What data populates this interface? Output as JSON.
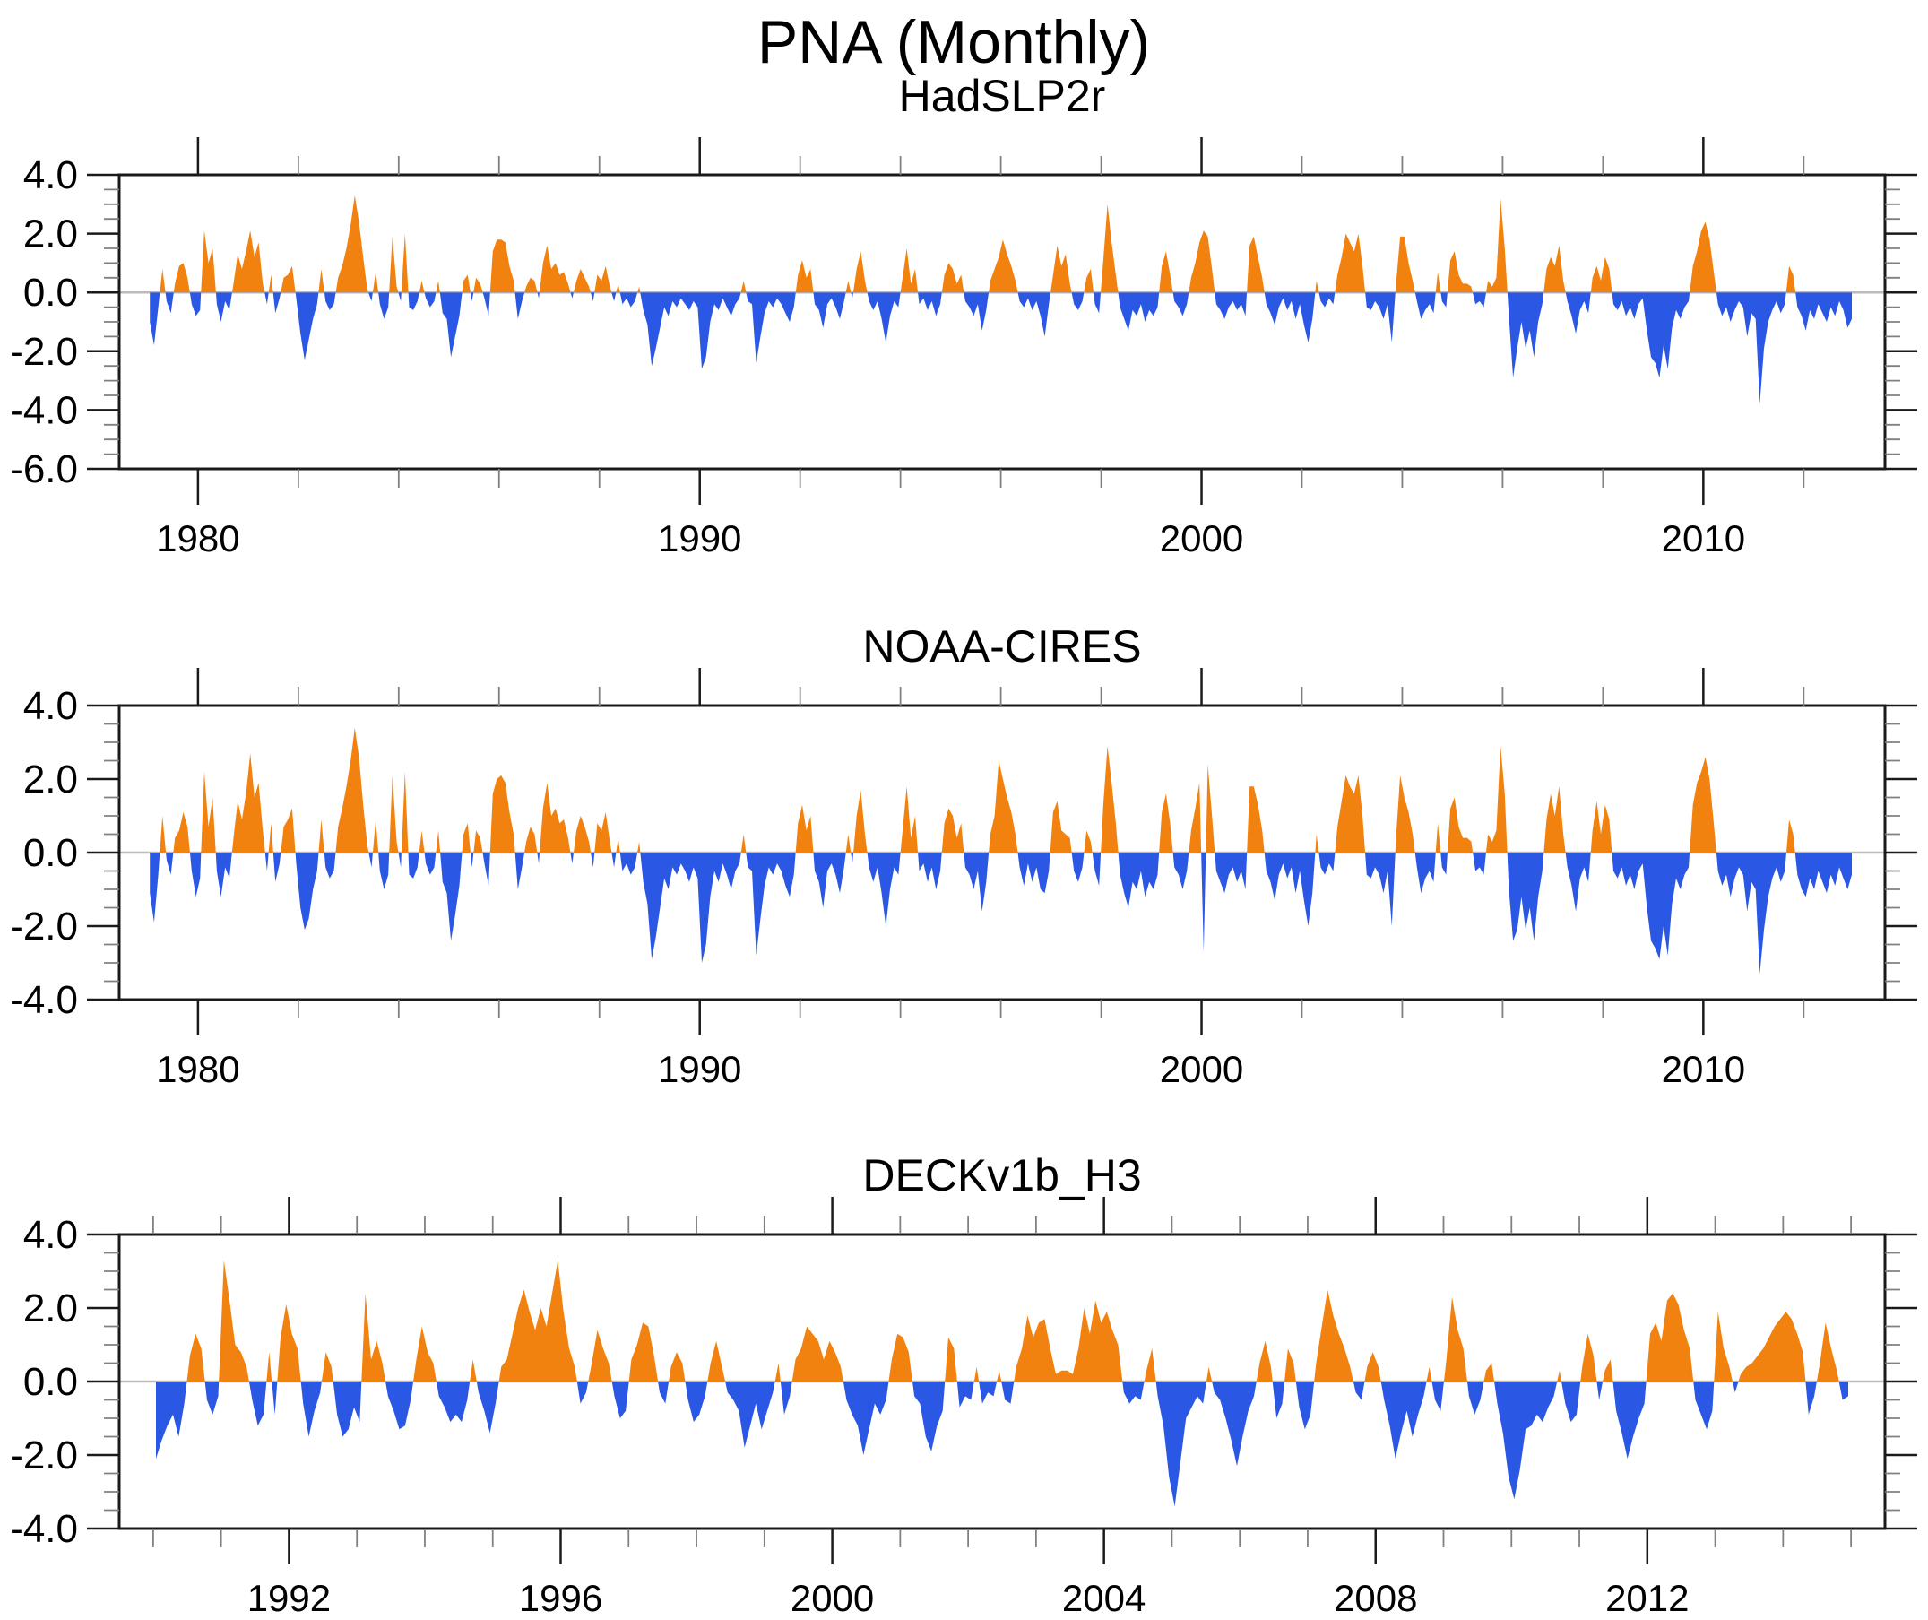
{
  "title": "PNA (Monthly)",
  "colors": {
    "positive_fill": "#F2820F",
    "negative_fill": "#2B57E5",
    "zero_line": "#BBBBBB",
    "axis": "#1A1A1A",
    "minor_tick": "#808080",
    "background": "#FFFFFF"
  },
  "chart_data": [
    {
      "type": "area",
      "title": "HadSLP2r",
      "xlabel": "",
      "ylabel": "",
      "grid": false,
      "legend_position": "none",
      "x_start": 1979.0,
      "x_step": 0.0833333,
      "xlim": [
        1978.43,
        2013.62
      ],
      "ylim": [
        -6.0,
        4.0
      ],
      "x_tick_values": [
        1980,
        1990,
        2000,
        2010
      ],
      "x_tick_labels": [
        "1980",
        "1990",
        "2000",
        "2010"
      ],
      "x_minor_step": 2,
      "y_tick_values": [
        4,
        2,
        0,
        -2,
        -4,
        -6
      ],
      "y_tick_labels": [
        "4.0",
        "2.0",
        "0.0",
        "-2.0",
        "-4.0",
        "-6.0"
      ],
      "y_minor_step": 0.5,
      "values": [
        -1.0,
        -1.8,
        -0.5,
        0.8,
        -0.3,
        -0.7,
        0.3,
        0.9,
        1.0,
        0.5,
        -0.4,
        -0.8,
        -0.6,
        2.1,
        1.0,
        1.5,
        -0.4,
        -1.0,
        -0.3,
        -0.6,
        0.3,
        1.3,
        0.8,
        1.4,
        2.1,
        1.2,
        1.7,
        0.3,
        -0.4,
        0.6,
        -0.7,
        -0.2,
        0.5,
        0.6,
        0.9,
        -0.2,
        -1.4,
        -2.3,
        -1.6,
        -0.9,
        -0.4,
        0.8,
        -0.3,
        -0.6,
        -0.4,
        0.5,
        0.9,
        1.5,
        2.3,
        3.3,
        2.4,
        1.2,
        0.1,
        -0.3,
        0.7,
        -0.4,
        -0.9,
        -0.5,
        1.9,
        0.2,
        -0.3,
        2.0,
        -0.5,
        -0.6,
        -0.3,
        0.4,
        -0.2,
        -0.5,
        -0.3,
        0.4,
        -0.7,
        -0.9,
        -2.2,
        -1.5,
        -0.8,
        0.4,
        0.6,
        -0.3,
        0.5,
        0.3,
        -0.2,
        -0.8,
        1.4,
        1.8,
        1.8,
        1.7,
        0.9,
        0.4,
        -0.9,
        -0.3,
        0.2,
        0.5,
        0.4,
        -0.2,
        1.0,
        1.6,
        0.8,
        1.0,
        0.6,
        0.7,
        0.3,
        -0.2,
        0.4,
        0.8,
        0.5,
        0.2,
        -0.3,
        0.6,
        0.4,
        0.9,
        0.2,
        -0.3,
        0.3,
        -0.4,
        -0.2,
        -0.5,
        -0.3,
        0.2,
        -0.6,
        -1.1,
        -2.5,
        -1.9,
        -1.2,
        -0.5,
        -0.8,
        -0.3,
        -0.5,
        -0.2,
        -0.4,
        -0.6,
        -0.3,
        -0.5,
        -2.6,
        -2.2,
        -1.0,
        -0.4,
        -0.6,
        -0.2,
        -0.5,
        -0.8,
        -0.4,
        -0.2,
        0.4,
        -0.3,
        -0.4,
        -2.4,
        -1.5,
        -0.7,
        -0.3,
        -0.5,
        -0.2,
        -0.4,
        -0.7,
        -1.0,
        -0.5,
        0.6,
        1.1,
        0.5,
        0.8,
        -0.4,
        -0.6,
        -1.2,
        -0.4,
        -0.2,
        -0.5,
        -0.9,
        -0.3,
        0.4,
        -0.2,
        0.8,
        1.4,
        0.4,
        -0.3,
        -0.6,
        -0.3,
        -0.9,
        -1.7,
        -0.8,
        -0.3,
        -0.5,
        0.5,
        1.5,
        0.3,
        0.8,
        -0.4,
        -0.2,
        -0.6,
        -0.3,
        -0.8,
        -0.4,
        0.6,
        1.0,
        0.8,
        0.3,
        0.6,
        -0.3,
        -0.5,
        -0.8,
        -0.4,
        -1.3,
        -0.6,
        0.4,
        0.8,
        1.2,
        1.8,
        1.3,
        0.9,
        0.4,
        -0.3,
        -0.5,
        -0.2,
        -0.6,
        -0.3,
        -0.8,
        -1.5,
        -0.4,
        0.6,
        1.6,
        0.9,
        1.3,
        0.3,
        -0.4,
        -0.6,
        -0.3,
        0.5,
        0.8,
        -0.4,
        -0.7,
        1.1,
        3.0,
        1.7,
        0.6,
        -0.5,
        -0.9,
        -1.3,
        -0.6,
        -0.8,
        -0.4,
        -1.0,
        -0.6,
        -0.8,
        -0.5,
        0.9,
        1.4,
        0.6,
        -0.3,
        -0.5,
        -0.8,
        -0.4,
        0.5,
        1.0,
        1.7,
        2.1,
        1.9,
        0.8,
        -0.4,
        -0.6,
        -0.9,
        -0.5,
        -0.3,
        -0.6,
        -0.4,
        -0.8,
        1.6,
        1.9,
        1.2,
        0.5,
        -0.4,
        -0.7,
        -1.1,
        -0.5,
        -0.2,
        -0.6,
        -0.3,
        -0.9,
        -0.4,
        -1.1,
        -1.7,
        -0.9,
        0.4,
        -0.3,
        -0.5,
        -0.2,
        -0.4,
        0.6,
        1.2,
        2.0,
        1.7,
        1.4,
        2.0,
        0.9,
        -0.5,
        -0.6,
        -0.3,
        -0.5,
        -0.9,
        -0.4,
        -1.7,
        0.3,
        1.9,
        1.9,
        1.0,
        0.4,
        -0.3,
        -0.9,
        -0.6,
        -0.4,
        -0.7,
        0.7,
        -0.3,
        -0.5,
        1.1,
        1.4,
        0.6,
        0.3,
        0.3,
        0.2,
        -0.4,
        -0.3,
        -0.5,
        0.4,
        0.2,
        0.5,
        3.2,
        1.5,
        -0.8,
        -2.9,
        -1.9,
        -1.0,
        -1.9,
        -1.3,
        -2.2,
        -1.0,
        -0.4,
        0.8,
        1.2,
        0.9,
        1.6,
        0.4,
        -0.3,
        -0.8,
        -1.4,
        -0.6,
        -0.3,
        -0.7,
        0.5,
        0.9,
        0.4,
        1.2,
        0.8,
        -0.4,
        -0.6,
        -0.3,
        -0.8,
        -0.5,
        -0.9,
        -0.4,
        -0.2,
        -1.3,
        -2.2,
        -2.4,
        -2.9,
        -1.8,
        -2.6,
        -1.2,
        -0.6,
        -0.9,
        -0.5,
        -0.3,
        0.9,
        1.4,
        2.1,
        2.4,
        1.8,
        0.7,
        -0.4,
        -0.8,
        -0.5,
        -1.0,
        -0.6,
        -0.3,
        -0.5,
        -1.5,
        -0.7,
        -0.9,
        -3.8,
        -1.9,
        -1.0,
        -0.6,
        -0.3,
        -0.7,
        -0.4,
        0.9,
        0.6,
        -0.5,
        -0.8,
        -1.3,
        -0.6,
        -0.9,
        -0.4,
        -0.7,
        -1.0,
        -0.5,
        -0.8,
        -0.3,
        -0.6,
        -1.2,
        -0.9
      ]
    },
    {
      "type": "area",
      "title": "NOAA-CIRES",
      "xlabel": "",
      "ylabel": "",
      "grid": false,
      "legend_position": "none",
      "x_start": 1979.0,
      "x_step": 0.0833333,
      "xlim": [
        1978.43,
        2013.62
      ],
      "ylim": [
        -4.0,
        4.0
      ],
      "x_tick_values": [
        1980,
        1990,
        2000,
        2010
      ],
      "x_tick_labels": [
        "1980",
        "1990",
        "2000",
        "2010"
      ],
      "x_minor_step": 2,
      "y_tick_values": [
        4,
        2,
        0,
        -2,
        -4
      ],
      "y_tick_labels": [
        "4.0",
        "2.0",
        "0.0",
        "-2.0",
        "-4.0"
      ],
      "y_minor_step": 0.5,
      "values": [
        -1.1,
        -1.9,
        -0.6,
        1.0,
        -0.2,
        -0.6,
        0.4,
        0.6,
        1.1,
        0.7,
        -0.5,
        -1.2,
        -0.7,
        2.2,
        0.7,
        1.5,
        -0.5,
        -1.2,
        -0.4,
        -0.7,
        0.4,
        1.4,
        0.9,
        1.6,
        2.7,
        1.5,
        1.9,
        0.6,
        -0.5,
        0.8,
        -0.8,
        -0.3,
        0.7,
        0.9,
        1.2,
        -0.3,
        -1.5,
        -2.1,
        -1.8,
        -1.0,
        -0.5,
        0.9,
        -0.4,
        -0.7,
        -0.5,
        0.7,
        1.2,
        1.8,
        2.5,
        3.4,
        2.6,
        1.3,
        0.2,
        -0.4,
        0.9,
        -0.5,
        -1.0,
        -0.6,
        2.1,
        0.3,
        -0.4,
        2.2,
        -0.6,
        -0.7,
        -0.4,
        0.6,
        -0.3,
        -0.6,
        -0.4,
        0.6,
        -0.8,
        -1.1,
        -2.4,
        -1.7,
        -0.9,
        0.5,
        0.8,
        -0.4,
        0.6,
        0.4,
        -0.3,
        -0.9,
        1.6,
        2.0,
        2.1,
        1.9,
        1.1,
        0.5,
        -1.0,
        -0.4,
        0.3,
        0.7,
        0.5,
        -0.3,
        1.2,
        1.9,
        1.0,
        1.2,
        0.8,
        0.9,
        0.4,
        -0.3,
        0.6,
        1.0,
        0.7,
        0.3,
        -0.4,
        0.8,
        0.6,
        1.1,
        0.3,
        -0.4,
        0.4,
        -0.5,
        -0.3,
        -0.6,
        -0.4,
        0.3,
        -0.8,
        -1.4,
        -2.9,
        -2.3,
        -1.5,
        -0.7,
        -1.0,
        -0.4,
        -0.6,
        -0.3,
        -0.5,
        -0.8,
        -0.4,
        -0.7,
        -3.0,
        -2.5,
        -1.2,
        -0.5,
        -0.8,
        -0.3,
        -0.6,
        -1.0,
        -0.5,
        -0.3,
        0.5,
        -0.4,
        -0.5,
        -2.8,
        -1.8,
        -0.9,
        -0.4,
        -0.6,
        -0.3,
        -0.5,
        -0.9,
        -1.2,
        -0.6,
        0.8,
        1.3,
        0.6,
        1.0,
        -0.5,
        -0.8,
        -1.5,
        -0.5,
        -0.3,
        -0.6,
        -1.1,
        -0.4,
        0.5,
        -0.3,
        1.0,
        1.7,
        0.5,
        -0.4,
        -0.8,
        -0.4,
        -1.1,
        -2.0,
        -1.0,
        -0.4,
        -0.6,
        0.6,
        1.8,
        0.4,
        1.0,
        -0.5,
        -0.3,
        -0.8,
        -0.4,
        -1.0,
        -0.5,
        0.8,
        1.2,
        1.0,
        0.4,
        0.8,
        -0.4,
        -0.6,
        -1.0,
        -0.5,
        -1.6,
        -0.8,
        0.5,
        1.0,
        2.5,
        2.0,
        1.5,
        1.1,
        0.5,
        -0.4,
        -0.9,
        -0.3,
        -0.8,
        -0.4,
        -1.0,
        -1.1,
        -0.5,
        1.1,
        1.4,
        0.6,
        0.5,
        0.4,
        -0.5,
        -0.8,
        -0.4,
        0.6,
        0.3,
        -0.5,
        -0.9,
        1.3,
        2.9,
        1.9,
        0.8,
        -0.6,
        -1.1,
        -1.5,
        -0.8,
        -1.0,
        -0.5,
        -1.2,
        -0.8,
        -1.0,
        -0.6,
        1.1,
        1.6,
        0.8,
        -0.4,
        -0.6,
        -1.0,
        -0.5,
        0.6,
        1.2,
        1.9,
        -2.7,
        2.4,
        1.0,
        -0.5,
        -0.8,
        -1.1,
        -0.6,
        -0.4,
        -0.8,
        -0.5,
        -1.0,
        1.8,
        1.8,
        1.3,
        0.6,
        -0.5,
        -0.8,
        -1.3,
        -0.6,
        -0.3,
        -0.7,
        -0.4,
        -1.1,
        -0.5,
        -1.3,
        -2.0,
        -1.1,
        0.5,
        -0.4,
        -0.6,
        -0.3,
        -0.5,
        0.7,
        1.4,
        2.1,
        1.8,
        1.6,
        2.1,
        1.0,
        -0.6,
        -0.7,
        -0.4,
        -0.6,
        -1.1,
        -0.5,
        -2.0,
        0.4,
        2.1,
        1.5,
        1.1,
        0.5,
        -0.4,
        -1.1,
        -0.7,
        -0.5,
        -0.8,
        0.8,
        -0.4,
        -0.6,
        1.2,
        1.5,
        0.7,
        0.4,
        0.4,
        0.3,
        -0.5,
        -0.4,
        -0.6,
        0.5,
        0.3,
        0.6,
        2.9,
        1.6,
        -1.0,
        -2.4,
        -2.1,
        -1.2,
        -2.1,
        -1.5,
        -2.4,
        -1.2,
        -0.5,
        0.9,
        1.6,
        1.0,
        1.8,
        0.5,
        -0.4,
        -0.9,
        -1.6,
        -0.7,
        -0.4,
        -0.8,
        0.6,
        1.4,
        0.5,
        1.3,
        0.9,
        -0.5,
        -0.7,
        -0.4,
        -0.9,
        -0.6,
        -1.0,
        -0.5,
        -0.3,
        -1.5,
        -2.4,
        -2.6,
        -2.9,
        -2.0,
        -2.8,
        -1.4,
        -0.7,
        -1.0,
        -0.6,
        -0.4,
        1.3,
        1.9,
        2.2,
        2.6,
        2.0,
        0.8,
        -0.5,
        -0.9,
        -0.6,
        -1.2,
        -0.7,
        -0.4,
        -0.6,
        -1.6,
        -0.8,
        -1.0,
        -3.3,
        -2.1,
        -1.2,
        -0.7,
        -0.4,
        -0.8,
        -0.5,
        0.9,
        0.5,
        -0.6,
        -1.0,
        -1.2,
        -0.7,
        -1.0,
        -0.5,
        -0.8,
        -1.1,
        -0.6,
        -0.9,
        -0.4,
        -0.7,
        -1.0,
        -0.6
      ]
    },
    {
      "type": "area",
      "title": "DECKv1b_H3",
      "xlabel": "",
      "ylabel": "",
      "grid": false,
      "legend_position": "none",
      "x_start": 1990.0,
      "x_step": 0.0833333,
      "xlim": [
        1989.5,
        2015.5
      ],
      "ylim": [
        -4.0,
        4.0
      ],
      "x_tick_values": [
        1992,
        1996,
        2000,
        2004,
        2008,
        2012
      ],
      "x_tick_labels": [
        "1992",
        "1996",
        "2000",
        "2004",
        "2008",
        "2012"
      ],
      "x_minor_step": 1,
      "y_tick_values": [
        4,
        2,
        0,
        -2,
        -4
      ],
      "y_tick_labels": [
        "4.0",
        "2.0",
        "0.0",
        "-2.0",
        "-4.0"
      ],
      "y_minor_step": 0.5,
      "values": [
        -2.1,
        -1.6,
        -1.2,
        -0.9,
        -1.5,
        -0.6,
        0.7,
        1.3,
        0.9,
        -0.5,
        -0.9,
        -0.4,
        3.3,
        2.2,
        1.0,
        0.8,
        0.4,
        -0.5,
        -1.2,
        -0.9,
        0.8,
        -0.9,
        1.2,
        2.1,
        1.3,
        0.9,
        -0.6,
        -1.5,
        -0.8,
        -0.3,
        0.8,
        0.4,
        -0.9,
        -1.5,
        -1.3,
        -0.7,
        -1.1,
        2.4,
        0.6,
        1.1,
        0.5,
        -0.4,
        -0.8,
        -1.3,
        -1.2,
        -0.5,
        0.6,
        1.5,
        0.8,
        0.5,
        -0.4,
        -0.7,
        -1.1,
        -0.9,
        -1.1,
        -0.5,
        0.6,
        -0.3,
        -0.8,
        -1.4,
        -0.6,
        0.4,
        0.6,
        1.3,
        2.0,
        2.5,
        1.9,
        1.4,
        2.0,
        1.5,
        2.4,
        3.3,
        1.9,
        0.9,
        0.4,
        -0.6,
        -0.3,
        0.5,
        1.4,
        0.9,
        0.5,
        -0.4,
        -1.0,
        -0.8,
        0.6,
        1.0,
        1.6,
        1.5,
        0.7,
        -0.3,
        -0.6,
        0.4,
        0.8,
        0.5,
        -0.5,
        -1.1,
        -0.9,
        -0.4,
        0.5,
        1.1,
        0.4,
        -0.3,
        -0.5,
        -0.8,
        -1.8,
        -1.2,
        -0.6,
        -1.3,
        -0.8,
        -0.3,
        0.5,
        -0.9,
        -0.4,
        0.6,
        0.9,
        1.5,
        1.3,
        1.1,
        0.6,
        1.1,
        0.8,
        0.4,
        -0.5,
        -0.9,
        -1.2,
        -2.0,
        -1.3,
        -0.6,
        -0.9,
        -0.5,
        0.6,
        1.3,
        1.2,
        0.8,
        -0.4,
        -0.6,
        -1.5,
        -1.9,
        -1.2,
        -0.8,
        1.2,
        0.9,
        -0.7,
        -0.4,
        -0.5,
        0.4,
        -0.6,
        -0.3,
        -0.4,
        0.3,
        -0.5,
        -0.6,
        0.4,
        0.9,
        1.8,
        1.2,
        1.6,
        1.7,
        0.9,
        0.2,
        0.3,
        0.3,
        0.2,
        0.9,
        2.0,
        1.3,
        2.2,
        1.6,
        1.9,
        1.4,
        1.0,
        -0.3,
        -0.6,
        -0.4,
        -0.5,
        0.3,
        0.9,
        -0.4,
        -1.2,
        -2.6,
        -3.4,
        -2.2,
        -1.0,
        -0.7,
        -0.4,
        -0.6,
        0.4,
        -0.3,
        -0.5,
        -1.0,
        -1.6,
        -2.3,
        -1.5,
        -0.8,
        -0.4,
        0.5,
        1.1,
        0.4,
        -1.0,
        -0.6,
        0.9,
        0.5,
        -0.7,
        -1.3,
        -0.9,
        0.5,
        1.5,
        2.5,
        1.8,
        1.3,
        0.9,
        0.4,
        -0.3,
        -0.5,
        0.4,
        0.8,
        0.4,
        -0.5,
        -1.2,
        -2.1,
        -1.4,
        -0.8,
        -1.5,
        -0.9,
        -0.4,
        0.4,
        -0.5,
        -0.8,
        0.6,
        2.3,
        1.4,
        0.9,
        -0.4,
        -0.9,
        -0.5,
        0.3,
        0.5,
        -0.6,
        -1.4,
        -2.6,
        -3.2,
        -2.4,
        -1.3,
        -1.2,
        -0.9,
        -1.1,
        -0.7,
        -0.4,
        0.3,
        -0.6,
        -1.1,
        -0.9,
        0.4,
        1.3,
        0.7,
        -0.5,
        0.3,
        0.6,
        -0.8,
        -1.4,
        -2.1,
        -1.5,
        -1.0,
        -0.6,
        1.3,
        1.6,
        1.1,
        2.2,
        2.4,
        2.1,
        1.4,
        0.9,
        -0.5,
        -0.9,
        -1.3,
        -0.8,
        1.9,
        0.9,
        0.4,
        -0.3,
        0.2,
        0.4,
        0.5,
        0.7,
        0.9,
        1.2,
        1.5,
        1.7,
        1.9,
        1.7,
        1.3,
        0.8,
        -0.9,
        -0.4,
        0.5,
        1.6,
        0.9,
        0.3,
        -0.5,
        -0.4
      ]
    }
  ]
}
